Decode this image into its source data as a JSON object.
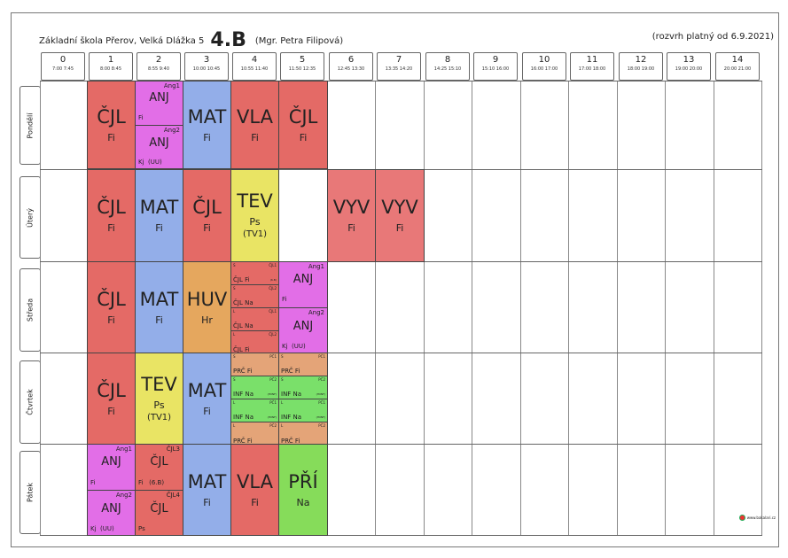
{
  "header": {
    "school": "Základní škola Přerov, Velká Dlážka 5",
    "class_name": "4.B",
    "teacher": "(Mgr. Petra Filipová)",
    "valid_from": "(rozvrh platný od 6.9.2021)"
  },
  "periods": [
    {
      "num": "0",
      "time": "7:00 7:45"
    },
    {
      "num": "1",
      "time": "8:00 8:45"
    },
    {
      "num": "2",
      "time": "8:55 9:40"
    },
    {
      "num": "3",
      "time": "10:00 10:45"
    },
    {
      "num": "4",
      "time": "10:55 11:40"
    },
    {
      "num": "5",
      "time": "11:50 12:35"
    },
    {
      "num": "6",
      "time": "12:45 13:30"
    },
    {
      "num": "7",
      "time": "13:35 14:20"
    },
    {
      "num": "8",
      "time": "14:25 15:10"
    },
    {
      "num": "9",
      "time": "15:10 16:00"
    },
    {
      "num": "10",
      "time": "16:00 17:00"
    },
    {
      "num": "11",
      "time": "17:00 18:00"
    },
    {
      "num": "12",
      "time": "18:00 19:00"
    },
    {
      "num": "13",
      "time": "19:00 20:00"
    },
    {
      "num": "14",
      "time": "20:00 21:00"
    }
  ],
  "days": [
    "Pondělí",
    "Úterý",
    "Středa",
    "Čtvrtek",
    "Pátek"
  ],
  "lessons": {
    "mon": {
      "p1": {
        "subject": "ČJL",
        "teacher": "Fi"
      },
      "p2": {
        "a": {
          "group": "Ang1",
          "subject": "ANJ",
          "line": "Fi"
        },
        "b": {
          "group": "Ang2",
          "subject": "ANJ",
          "line": "Kj  (UU)"
        }
      },
      "p3": {
        "subject": "MAT",
        "teacher": "Fi"
      },
      "p4": {
        "subject": "VLA",
        "teacher": "Fi"
      },
      "p5": {
        "subject": "ČJL",
        "teacher": "Fi"
      }
    },
    "tue": {
      "p1": {
        "subject": "ČJL",
        "teacher": "Fi"
      },
      "p2": {
        "subject": "MAT",
        "teacher": "Fi"
      },
      "p3": {
        "subject": "ČJL",
        "teacher": "Fi"
      },
      "p4": {
        "subject": "TEV",
        "teacher": "Ps",
        "room": "(TV1)"
      },
      "p6": {
        "subject": "VYV",
        "teacher": "Fi"
      },
      "p7": {
        "subject": "VYV",
        "teacher": "Fi"
      }
    },
    "wed": {
      "p1": {
        "subject": "ČJL",
        "teacher": "Fi"
      },
      "p2": {
        "subject": "MAT",
        "teacher": "Fi"
      },
      "p3": {
        "subject": "HUV",
        "teacher": "Hr"
      },
      "p4": [
        {
          "week": "S",
          "group": "ČJL1",
          "text": "ČJL  Fi",
          "room": "(6.B)"
        },
        {
          "week": "S",
          "group": "ČJL2",
          "text": "ČJL  Na",
          "room": ""
        },
        {
          "week": "L",
          "group": "ČJL1",
          "text": "ČJL  Na",
          "room": ""
        },
        {
          "week": "L",
          "group": "ČJL2",
          "text": "ČJL  Fi",
          "room": ""
        }
      ],
      "p5": {
        "a": {
          "group": "Ang1",
          "subject": "ANJ",
          "line": "Fi"
        },
        "b": {
          "group": "Ang2",
          "subject": "ANJ",
          "line": "Kj  (UU)"
        }
      }
    },
    "thu": {
      "p1": {
        "subject": "ČJL",
        "teacher": "Fi"
      },
      "p2": {
        "subject": "TEV",
        "teacher": "Ps",
        "room": "(TV1)"
      },
      "p3": {
        "subject": "MAT",
        "teacher": "Fi"
      },
      "p4": [
        {
          "week": "S",
          "group": "PČ1",
          "text": "PRČ  Fi",
          "room": ""
        },
        {
          "week": "S",
          "group": "PČ2",
          "text": "INF  Na",
          "room": "(HIINF)"
        },
        {
          "week": "L",
          "group": "PČ1",
          "text": "INF  Na",
          "room": "(HIINF)"
        },
        {
          "week": "L",
          "group": "PČ2",
          "text": "PRČ  Fi",
          "room": ""
        }
      ],
      "p5": [
        {
          "week": "S",
          "group": "PČ1",
          "text": "PRČ  Fi",
          "room": ""
        },
        {
          "week": "S",
          "group": "PČ2",
          "text": "INF  Na",
          "room": "(HIINF)"
        },
        {
          "week": "L",
          "group": "PČ1",
          "text": "INF  Na",
          "room": "(HIINF)"
        },
        {
          "week": "L",
          "group": "PČ2",
          "text": "PRČ  Fi",
          "room": ""
        }
      ]
    },
    "fri": {
      "p1": {
        "a": {
          "group": "Ang1",
          "subject": "ANJ",
          "line": "Fi"
        },
        "b": {
          "group": "Ang2",
          "subject": "ANJ",
          "line": "Kj  (UU)"
        }
      },
      "p2": {
        "a": {
          "group": "ČJL3",
          "subject": "ČJL",
          "line": "Fi   (6.B)"
        },
        "b": {
          "group": "ČJL4",
          "subject": "ČJL",
          "line": "Ps"
        }
      },
      "p3": {
        "subject": "MAT",
        "teacher": "Fi"
      },
      "p4": {
        "subject": "VLA",
        "teacher": "Fi"
      },
      "p5": {
        "subject": "PŘÍ",
        "teacher": "Na"
      }
    }
  },
  "footer": {
    "brand": "www.bakalari.cz"
  },
  "colors": {
    "cjl": "#e46a66",
    "anj": "#e26ee7",
    "mat": "#93aee9",
    "tev": "#e9e464",
    "vyv": "#e87878",
    "huv": "#e5a75e",
    "inf": "#7ae06a",
    "prc": "#e4a478",
    "pri": "#86dc5a"
  }
}
